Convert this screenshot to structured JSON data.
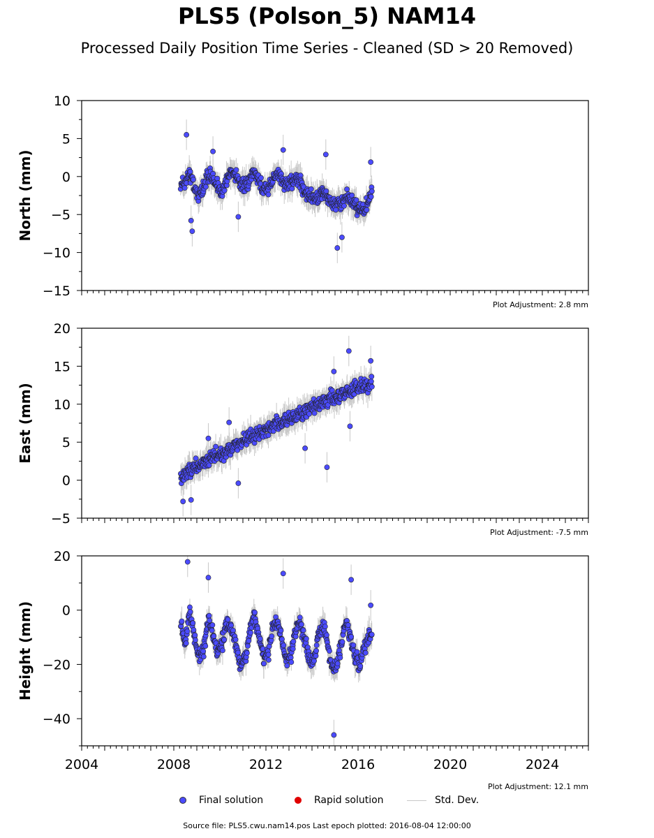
{
  "title": "PLS5 (Polson_5) NAM14",
  "subtitle": "Processed Daily Position Time Series - Cleaned (SD > 20 Removed)",
  "legend": {
    "final": "Final solution",
    "rapid": "Rapid solution",
    "std": "Std. Dev."
  },
  "source_text": "Source file: PLS5.cwu.nam14.pos  Last epoch plotted: 2016-08-04 12:00:00",
  "colors": {
    "final": "#4b4bff",
    "rapid": "#e00000",
    "std": "#c8c8c8"
  },
  "chart_data": [
    {
      "type": "scatter",
      "ylabel": "North (mm)",
      "xlim": [
        2004,
        2026
      ],
      "ylim": [
        -15,
        10
      ],
      "yticks": [
        -15,
        -10,
        -5,
        0,
        5,
        10
      ],
      "adjustment": "Plot Adjustment: 2.8 mm",
      "grid": false,
      "series": [
        {
          "name": "Final solution",
          "x": [
            2008.3,
            2008.5,
            2008.7,
            2008.9,
            2009.1,
            2009.3,
            2009.5,
            2009.7,
            2009.9,
            2010.1,
            2010.3,
            2010.5,
            2010.7,
            2010.9,
            2011.1,
            2011.3,
            2011.5,
            2011.7,
            2011.9,
            2012.1,
            2012.3,
            2012.5,
            2012.7,
            2012.9,
            2013.1,
            2013.3,
            2013.5,
            2013.7,
            2013.9,
            2014.1,
            2014.3,
            2014.5,
            2014.7,
            2014.9,
            2015.1,
            2015.3,
            2015.5,
            2015.7,
            2015.9,
            2016.1,
            2016.3,
            2016.5,
            2016.6
          ],
          "y": [
            -1.5,
            -0.5,
            0.5,
            -1.5,
            -2.5,
            -1.5,
            0.5,
            -0.5,
            -1.5,
            -2.0,
            -0.5,
            1.0,
            0.0,
            -1.0,
            -1.5,
            -0.5,
            0.5,
            -0.5,
            -1.5,
            -1.5,
            -0.5,
            0.5,
            -0.5,
            -1.5,
            -1.0,
            0.0,
            -0.5,
            -2.0,
            -2.5,
            -3.0,
            -2.5,
            -2.0,
            -3.0,
            -3.5,
            -3.5,
            -3.5,
            -2.5,
            -3.5,
            -4.0,
            -4.0,
            -4.5,
            -3.0,
            -2.0
          ],
          "outliers_x": [
            2008.55,
            2008.75,
            2008.8,
            2009.7,
            2010.8,
            2012.75,
            2014.6,
            2015.1,
            2015.3,
            2016.55
          ],
          "outliers_y": [
            5.5,
            -5.8,
            -7.2,
            3.3,
            -5.3,
            3.5,
            2.9,
            -9.4,
            -8.0,
            1.9
          ]
        }
      ]
    },
    {
      "type": "scatter",
      "ylabel": "East (mm)",
      "xlim": [
        2004,
        2026
      ],
      "ylim": [
        -5,
        20
      ],
      "yticks": [
        -5,
        0,
        5,
        10,
        15,
        20
      ],
      "adjustment": "Plot Adjustment: -7.5 mm",
      "grid": false,
      "series": [
        {
          "name": "Final solution",
          "x": [
            2008.3,
            2008.5,
            2008.7,
            2008.9,
            2009.1,
            2009.3,
            2009.5,
            2009.7,
            2009.9,
            2010.1,
            2010.3,
            2010.5,
            2010.7,
            2010.9,
            2011.1,
            2011.3,
            2011.5,
            2011.7,
            2011.9,
            2012.1,
            2012.3,
            2012.5,
            2012.7,
            2012.9,
            2013.1,
            2013.3,
            2013.5,
            2013.7,
            2013.9,
            2014.1,
            2014.3,
            2014.5,
            2014.7,
            2014.9,
            2015.1,
            2015.3,
            2015.5,
            2015.7,
            2015.9,
            2016.1,
            2016.3,
            2016.5,
            2016.6
          ],
          "y": [
            0.0,
            0.8,
            1.2,
            1.5,
            1.8,
            2.2,
            2.6,
            3.0,
            3.3,
            3.6,
            4.0,
            4.3,
            4.7,
            5.0,
            5.3,
            5.6,
            5.9,
            6.2,
            6.5,
            6.8,
            7.0,
            7.3,
            7.6,
            7.9,
            8.2,
            8.5,
            8.8,
            9.1,
            9.4,
            9.7,
            10.0,
            10.2,
            10.5,
            10.8,
            11.0,
            11.2,
            11.5,
            11.8,
            12.0,
            12.3,
            12.5,
            12.6,
            12.8
          ],
          "outliers_x": [
            2008.4,
            2008.75,
            2009.5,
            2010.4,
            2010.8,
            2013.7,
            2014.65,
            2014.95,
            2015.6,
            2015.65,
            2016.55
          ],
          "outliers_y": [
            -2.8,
            -2.6,
            5.5,
            7.6,
            -0.4,
            4.2,
            1.7,
            14.3,
            17.0,
            7.1,
            15.7
          ]
        }
      ]
    },
    {
      "type": "scatter",
      "ylabel": "Height (mm)",
      "xlim": [
        2004,
        2026
      ],
      "ylim": [
        -50,
        20
      ],
      "yticks": [
        -40,
        -20,
        0,
        20
      ],
      "xticks": [
        2004,
        2008,
        2012,
        2016,
        2020,
        2024
      ],
      "adjustment": "Plot Adjustment: 12.1 mm",
      "grid": false,
      "series": [
        {
          "name": "Final solution",
          "x": [
            2008.3,
            2008.5,
            2008.7,
            2008.9,
            2009.1,
            2009.3,
            2009.5,
            2009.7,
            2009.9,
            2010.1,
            2010.3,
            2010.5,
            2010.7,
            2010.9,
            2011.1,
            2011.3,
            2011.5,
            2011.7,
            2011.9,
            2012.1,
            2012.3,
            2012.5,
            2012.7,
            2012.9,
            2013.1,
            2013.3,
            2013.5,
            2013.7,
            2013.9,
            2014.1,
            2014.3,
            2014.5,
            2014.7,
            2014.9,
            2015.1,
            2015.3,
            2015.5,
            2015.7,
            2015.9,
            2016.1,
            2016.3,
            2016.5,
            2016.6
          ],
          "y": [
            -5,
            -12,
            0,
            -10,
            -18,
            -14,
            -4,
            -8,
            -16,
            -12,
            -4,
            -6,
            -14,
            -20,
            -18,
            -8,
            -2,
            -10,
            -18,
            -16,
            -6,
            -4,
            -12,
            -18,
            -16,
            -6,
            -4,
            -12,
            -18,
            -18,
            -8,
            -6,
            -14,
            -22,
            -20,
            -10,
            -4,
            -12,
            -18,
            -20,
            -14,
            -10,
            -8
          ],
          "outliers_x": [
            2008.6,
            2009.5,
            2012.75,
            2014.95,
            2015.7,
            2016.55
          ],
          "outliers_y": [
            17.8,
            12.0,
            13.5,
            -46.0,
            11.2,
            1.8
          ]
        }
      ]
    }
  ]
}
